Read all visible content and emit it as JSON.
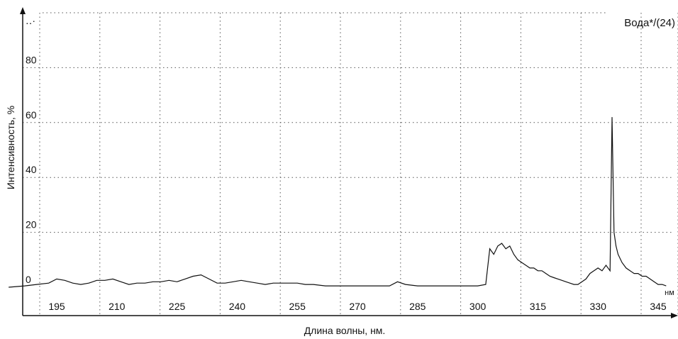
{
  "chart_data": {
    "type": "line",
    "title": "Вода*/(24)",
    "xlabel": "Длина волны, нм.",
    "ylabel": "Интенсивность, %",
    "x_unit": "нм",
    "xlim": [
      183,
      347
    ],
    "ylim": [
      0,
      100
    ],
    "x_ticks": [
      195,
      210,
      225,
      240,
      255,
      270,
      285,
      300,
      315,
      330,
      345
    ],
    "y_ticks": [
      0,
      20,
      40,
      60,
      80
    ],
    "y_top_label": "‥·",
    "grid": true,
    "grid_style": "dotted",
    "series": [
      {
        "color": "#111111",
        "x": [
          183,
          187,
          190,
          193,
          195,
          197,
          199,
          201,
          203,
          205,
          207,
          209,
          211,
          213,
          215,
          217,
          219,
          221,
          223,
          225,
          227,
          229,
          231,
          233,
          235,
          237,
          239,
          241,
          243,
          245,
          247,
          249,
          251,
          253,
          255,
          257,
          259,
          262,
          266,
          270,
          274,
          278,
          280,
          282,
          285,
          290,
          295,
          300,
          302,
          303,
          304,
          305,
          306,
          307,
          308,
          309,
          310,
          311,
          312,
          313,
          314,
          315,
          316,
          317,
          318,
          319,
          320,
          321,
          322,
          323,
          324,
          325,
          326,
          327,
          328,
          329,
          330,
          331,
          332,
          333,
          333.5,
          334,
          334.5,
          335,
          336,
          337,
          338,
          339,
          340,
          341,
          342,
          343,
          344,
          345,
          346,
          347
        ],
        "y": [
          0,
          0.5,
          1,
          1.5,
          3,
          2.5,
          1.5,
          1,
          1.5,
          2.5,
          2.5,
          3,
          2,
          1,
          1.5,
          1.5,
          2,
          2,
          2.5,
          2,
          3,
          4,
          4.5,
          3,
          1.5,
          1.5,
          2,
          2.5,
          2,
          1.5,
          1,
          1.5,
          1.5,
          1.5,
          1.5,
          1,
          1,
          0.5,
          0.5,
          0.5,
          0.5,
          0.5,
          2,
          1,
          0.5,
          0.5,
          0.5,
          0.5,
          1,
          14,
          12,
          15,
          16,
          14,
          15,
          12,
          10,
          9,
          8,
          7,
          7,
          6,
          6,
          5,
          4,
          3.5,
          3,
          2.5,
          2,
          1.5,
          1,
          1,
          2,
          3,
          5,
          6,
          7,
          6,
          8,
          6,
          62,
          20,
          15,
          12,
          9,
          7,
          6,
          5,
          5,
          4,
          4,
          3,
          2,
          1,
          1,
          0.5
        ]
      }
    ]
  }
}
